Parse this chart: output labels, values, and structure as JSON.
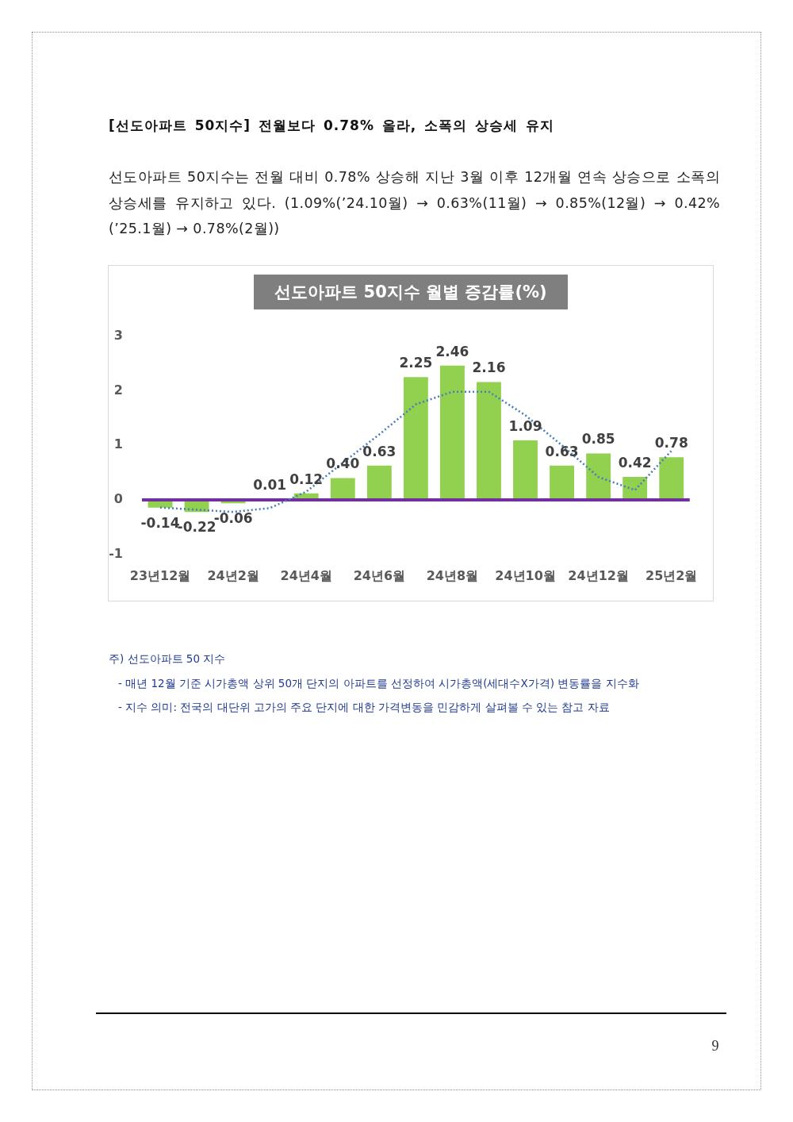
{
  "chart_data": {
    "type": "bar",
    "title": "선도아파트 50지수 월별 증감률(%)",
    "categories": [
      "23년12월",
      null,
      "24년2월",
      null,
      "24년4월",
      null,
      "24년6월",
      null,
      "24년8월",
      null,
      "24년10월",
      null,
      "24년12월",
      null,
      "25년2월"
    ],
    "series": [
      {
        "color": "#92d050",
        "values": [
          -0.14,
          -0.22,
          -0.06,
          0.01,
          0.12,
          0.4,
          0.63,
          2.25,
          2.46,
          2.16,
          1.09,
          0.63,
          0.85,
          0.42,
          0.78
        ],
        "value_labels": [
          "-0.14",
          "-0.22",
          "-0.06",
          "0.01",
          "0.12",
          "0.40",
          "0.63",
          "2.25",
          "2.46",
          "2.16",
          "1.09",
          "0.63",
          "0.85",
          "0.42",
          "0.78"
        ]
      },
      {
        "type": "line",
        "color": "#4a7ebb",
        "values": [
          -0.14,
          -0.18,
          -0.22,
          -0.15,
          0.15,
          0.68,
          1.2,
          1.75,
          1.98,
          1.98,
          1.55,
          1.0,
          0.42,
          0.18,
          0.9
        ],
        "line_style": "dotted",
        "marker": "none"
      }
    ],
    "ylim": [
      -1,
      3
    ],
    "yticks": [
      -1,
      0,
      1,
      2,
      3
    ],
    "ref_lines": [
      {
        "axis": "y",
        "value": 0,
        "color": "#7030a0"
      }
    ],
    "annotations": [
      "[선도아파트 50지수] 전월보다 0.78% 올라, 소폭의 상승세 유지",
      "선도아파트 50지수는 전월 대비 0.78% 상승해 지난 3월 이후 12개월 연속 상승으로 소폭의 상승세를 유지하고 있다. (1.09%(’24.10월) → 0.63%(11월) → 0.85%(12월) → 0.42%(’25.1월) → 0.78%(2월))",
      "주) 선도아파트 50 지수",
      "- 매년 12월 기준 시가총액 상위 50개 단지의 아파트를 선정하여 시가총액(세대수X가격) 변동률을 지수화",
      "- 지수 의미: 전국의 대단위 고가의 주요 단지에 대한 가격변동을 민감하게 살펴볼 수 있는 참고 자료",
      "9"
    ]
  }
}
